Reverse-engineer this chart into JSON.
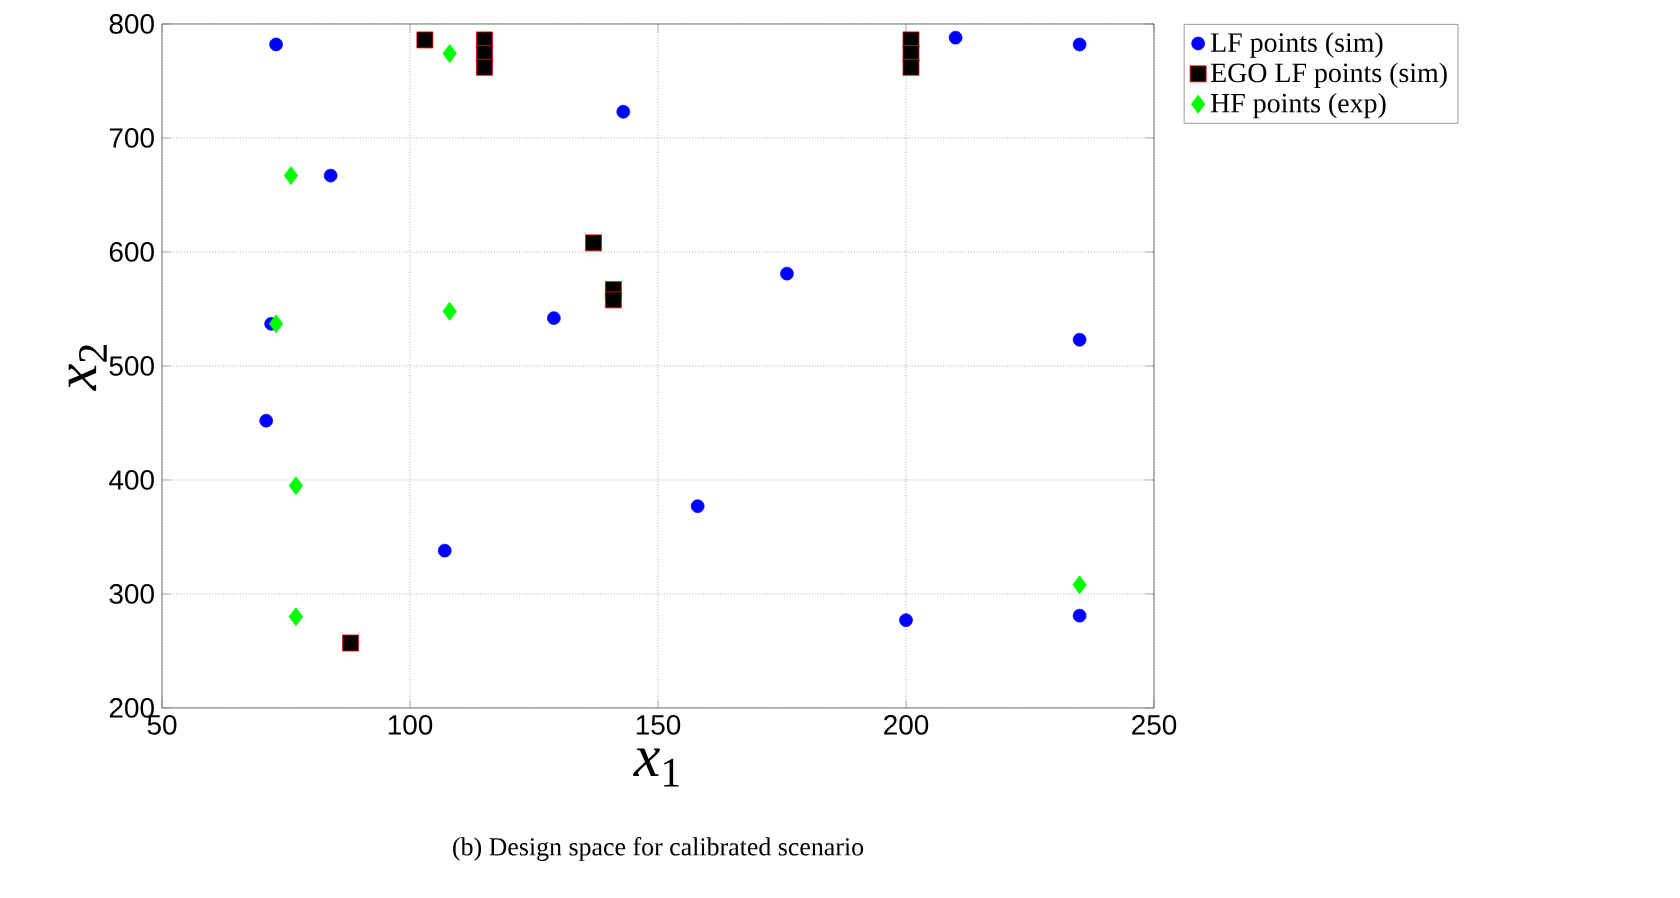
{
  "chart_data": {
    "type": "scatter",
    "xlabel": "*x*$_{1}$",
    "ylabel": "*x*$_{2}$",
    "xlim": [
      50,
      250
    ],
    "ylim": [
      200,
      800
    ],
    "xticks": [
      50,
      100,
      150,
      200,
      250
    ],
    "yticks": [
      200,
      300,
      400,
      500,
      600,
      700,
      800
    ],
    "grid": true,
    "legend": "top right",
    "annotations": [
      "(b) Design space for calibrated scenario"
    ],
    "series": [
      {
        "name": "LF points (sim)",
        "color": "#0000ff",
        "marker": "circle",
        "x": [
          73,
          84,
          129,
          143,
          176,
          107,
          158,
          71,
          200,
          210,
          235,
          235,
          235,
          72
        ],
        "values": [
          782,
          667,
          542,
          723,
          581,
          338,
          377,
          452,
          277,
          788,
          782,
          523,
          281,
          537
        ]
      },
      {
        "name": "EGO LF points (sim)",
        "color": "#000000",
        "marker": "square",
        "x": [
          103,
          115,
          115,
          115,
          137,
          141,
          141,
          201,
          201,
          201,
          88
        ],
        "values": [
          786,
          786,
          774,
          762,
          608,
          567,
          558,
          786,
          774,
          762,
          257
        ]
      },
      {
        "name": "HF points (exp)",
        "color": "#00ff00",
        "marker": "diamond",
        "x": [
          76,
          73,
          108,
          108,
          77,
          77,
          235
        ],
        "values": [
          667,
          537,
          774,
          548,
          395,
          280,
          308
        ]
      }
    ]
  }
}
